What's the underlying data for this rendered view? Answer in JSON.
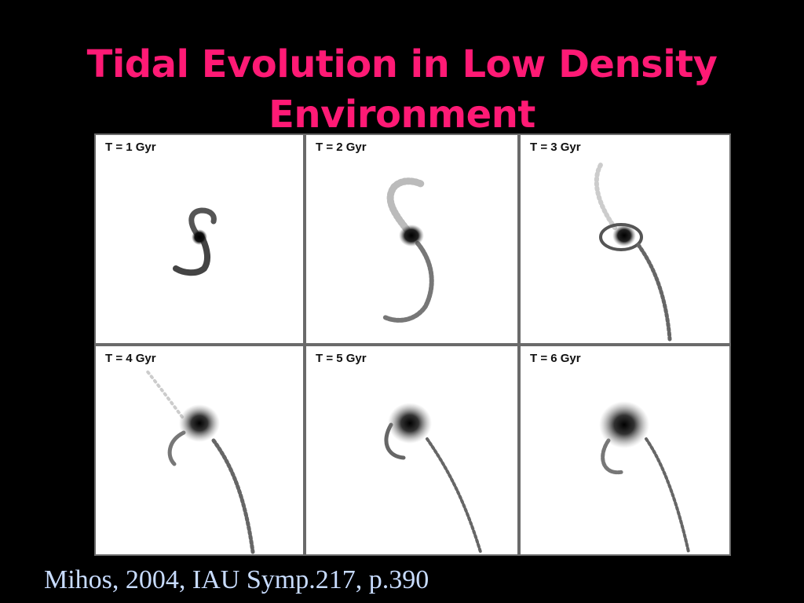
{
  "slide": {
    "title_lines": [
      "Tidal Evolution in Low Density",
      "Environment"
    ],
    "citation": "Mihos, 2004, IAU Symp.217, p.390"
  },
  "figure": {
    "panels": [
      {
        "label": "T = 1 Gyr",
        "stage": 1
      },
      {
        "label": "T = 2 Gyr",
        "stage": 2
      },
      {
        "label": "T = 3 Gyr",
        "stage": 3
      },
      {
        "label": "T = 4 Gyr",
        "stage": 4
      },
      {
        "label": "T = 5 Gyr",
        "stage": 5
      },
      {
        "label": "T = 6 Gyr",
        "stage": 6
      }
    ]
  },
  "colors": {
    "title": "#ff1a75",
    "citation": "#c8dcff",
    "background": "#000000",
    "panel_bg": "#ffffff"
  }
}
